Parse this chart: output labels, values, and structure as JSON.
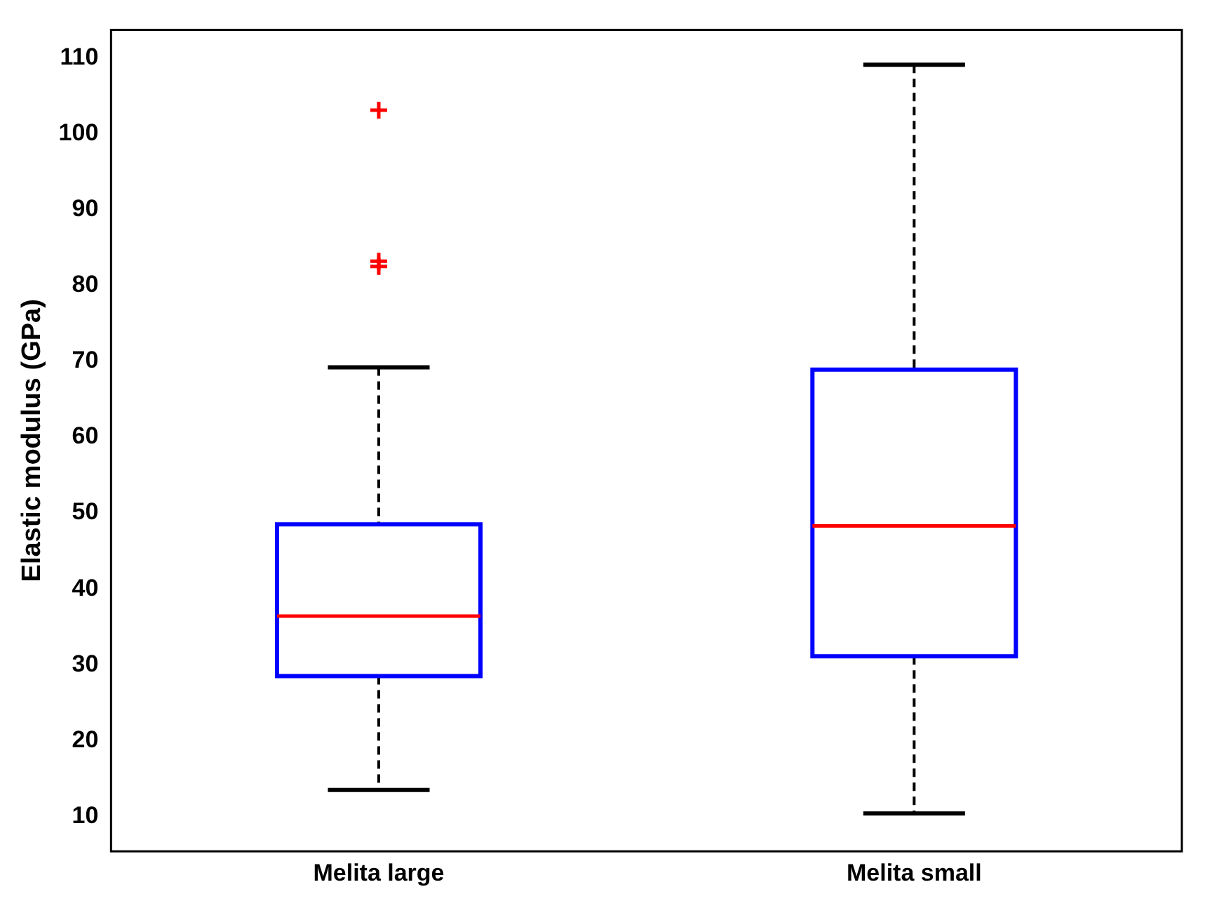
{
  "chart_data": {
    "type": "box",
    "ylabel": "Elastic modulus (GPa)",
    "categories": [
      "Melita large",
      "Melita small"
    ],
    "boxes": [
      {
        "low": 13.5,
        "q1": 28.5,
        "median": 36.4,
        "q3": 48.5,
        "high": 69.2,
        "outliers": [
          103.1,
          83.2,
          82.5
        ]
      },
      {
        "low": 10.4,
        "q1": 31.1,
        "median": 48.3,
        "q3": 68.9,
        "high": 109.1
      }
    ],
    "color": "#0000ff",
    "ylim": [
      5.4,
      113.7
    ],
    "yticks": [
      10,
      20,
      30,
      40,
      50,
      60,
      70,
      80,
      90,
      100,
      110
    ],
    "grid": false,
    "legend": false
  }
}
